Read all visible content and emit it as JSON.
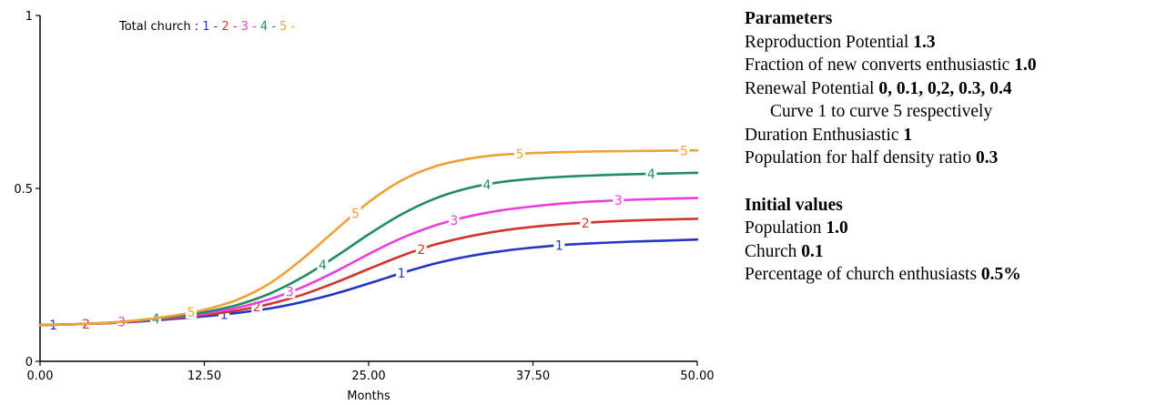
{
  "chart_data": {
    "type": "line",
    "xlabel": "Months",
    "x_ticks": [
      "0.00",
      "12.50",
      "25.00",
      "37.50",
      "50.00"
    ],
    "y_ticks": [
      "0",
      "0.5",
      "1"
    ],
    "xlim": [
      0,
      50
    ],
    "ylim": [
      0,
      1
    ],
    "legend": {
      "title": "Total church :",
      "placement": "top-left",
      "entries": [
        "1",
        "2",
        "3",
        "4",
        "5"
      ]
    },
    "x": [
      0,
      2.5,
      5,
      7.5,
      10,
      12.5,
      15,
      17.5,
      20,
      22.5,
      25,
      27.5,
      30,
      32.5,
      35,
      37.5,
      40,
      42.5,
      45,
      47.5,
      50
    ],
    "series": [
      {
        "name": "1",
        "color": "#2136c8",
        "values": [
          0.105,
          0.107,
          0.11,
          0.115,
          0.122,
          0.13,
          0.14,
          0.153,
          0.172,
          0.196,
          0.225,
          0.255,
          0.282,
          0.303,
          0.318,
          0.329,
          0.337,
          0.342,
          0.346,
          0.349,
          0.352
        ],
        "label_x": [
          1,
          14,
          27.5,
          39.5
        ]
      },
      {
        "name": "2",
        "color": "#d0342c",
        "values": [
          0.105,
          0.107,
          0.11,
          0.116,
          0.124,
          0.134,
          0.147,
          0.166,
          0.193,
          0.228,
          0.267,
          0.305,
          0.337,
          0.36,
          0.377,
          0.389,
          0.397,
          0.403,
          0.407,
          0.41,
          0.412
        ],
        "label_x": [
          3.5,
          16.5,
          29,
          41.5
        ]
      },
      {
        "name": "3",
        "color": "#e83ee0",
        "values": [
          0.105,
          0.107,
          0.111,
          0.117,
          0.126,
          0.138,
          0.155,
          0.18,
          0.215,
          0.26,
          0.31,
          0.356,
          0.392,
          0.418,
          0.436,
          0.448,
          0.457,
          0.463,
          0.467,
          0.47,
          0.472
        ],
        "label_x": [
          6.2,
          19,
          31.5,
          44
        ]
      },
      {
        "name": "4",
        "color": "#1f8c62",
        "values": [
          0.105,
          0.107,
          0.111,
          0.118,
          0.128,
          0.142,
          0.163,
          0.196,
          0.244,
          0.303,
          0.367,
          0.425,
          0.47,
          0.5,
          0.518,
          0.528,
          0.534,
          0.538,
          0.541,
          0.543,
          0.545
        ],
        "label_x": [
          8.8,
          21.5,
          34,
          46.5
        ]
      },
      {
        "name": "5",
        "color": "#f0a038",
        "values": [
          0.105,
          0.107,
          0.111,
          0.119,
          0.131,
          0.149,
          0.178,
          0.226,
          0.297,
          0.38,
          0.46,
          0.523,
          0.563,
          0.585,
          0.597,
          0.602,
          0.605,
          0.607,
          0.608,
          0.609,
          0.61
        ],
        "label_x": [
          11.5,
          24,
          36.5,
          49
        ]
      }
    ]
  },
  "panel": {
    "parameters_heading": "Parameters",
    "params": [
      {
        "label": "Reproduction Potential",
        "value": "1.3"
      },
      {
        "label": "Fraction of new converts enthusiastic",
        "value": "1.0"
      },
      {
        "label": "Renewal Potential",
        "value": "0, 0.1, 0,2, 0.3, 0.4"
      }
    ],
    "renewal_note": "Curve 1 to curve 5 respectively",
    "params_after": [
      {
        "label": "Duration Enthusiastic",
        "value": "1"
      },
      {
        "label": "Population for half density ratio",
        "value": "0.3"
      }
    ],
    "initial_heading": "Initial values",
    "initial": [
      {
        "label": "Population",
        "value": "1.0"
      },
      {
        "label": "Church",
        "value": "0.1"
      },
      {
        "label": "Percentage of church enthusiasts",
        "value": "0.5%"
      }
    ]
  }
}
